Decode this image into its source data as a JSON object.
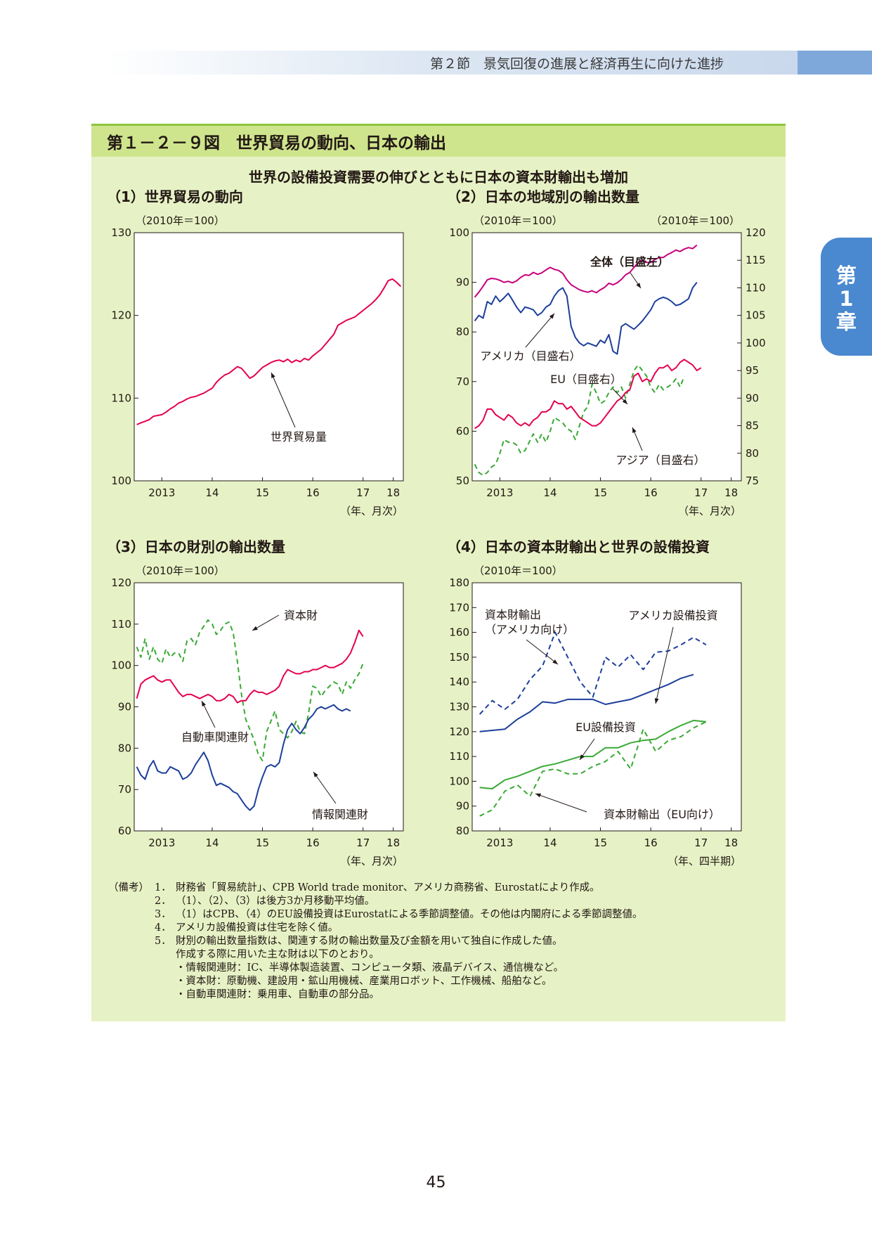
{
  "header": {
    "text": "第２節　景気回復の進展と経済再生に向けた進捗"
  },
  "chapter_tab": {
    "line1": "第",
    "line2": "1",
    "line3": "章"
  },
  "figure": {
    "title": "第１－２－９図　世界貿易の動向、日本の輸出",
    "subtitle": "世界の設備投資需要の伸びとともに日本の資本財輸出も増加"
  },
  "chart_data": [
    {
      "type": "line",
      "title": "（1）世界貿易の動向",
      "unit_left": "（2010年＝100）",
      "xlabel": "（年、月次）",
      "x_ticks": [
        "2013",
        "14",
        "15",
        "16",
        "17",
        "18"
      ],
      "x_tick_pos": [
        2013.5,
        2014.5,
        2015.5,
        2016.5,
        2017.5,
        2018.1
      ],
      "xlim": [
        2012.95,
        2018.3
      ],
      "ylim": [
        100,
        130
      ],
      "y_ticks": [
        100,
        110,
        120,
        130
      ],
      "series": [
        {
          "name": "世界貿易量",
          "color": "#e5004f",
          "style": "solid",
          "x_start": 2013.0,
          "x_step": 0.08333,
          "values": [
            106.8,
            107.0,
            107.2,
            107.4,
            107.8,
            107.9,
            108.0,
            108.3,
            108.7,
            109.0,
            109.4,
            109.6,
            109.9,
            110.1,
            110.2,
            110.4,
            110.6,
            110.9,
            111.2,
            111.9,
            112.4,
            112.8,
            113.0,
            113.4,
            113.8,
            113.6,
            113.0,
            112.4,
            112.7,
            113.2,
            113.7,
            114.0,
            114.3,
            114.5,
            114.6,
            114.4,
            114.7,
            114.3,
            114.6,
            114.4,
            114.8,
            114.6,
            115.1,
            115.5,
            115.9,
            116.5,
            117.1,
            117.7,
            118.8,
            119.1,
            119.4,
            119.6,
            119.8,
            120.2,
            120.6,
            121.0,
            121.4,
            121.9,
            122.5,
            123.3,
            124.2,
            124.4,
            124.0,
            123.5
          ]
        }
      ],
      "annotations": [
        {
          "text": "世界貿易量"
        }
      ]
    },
    {
      "type": "line",
      "title": "（2）日本の地域別の輸出数量",
      "unit_left": "（2010年＝100）",
      "unit_right": "（2010年＝100）",
      "xlabel": "（年、月次）",
      "x_ticks": [
        "2013",
        "14",
        "15",
        "16",
        "17",
        "18"
      ],
      "x_tick_pos": [
        2013.5,
        2014.5,
        2015.5,
        2016.5,
        2017.5,
        2018.1
      ],
      "xlim": [
        2012.95,
        2018.3
      ],
      "ylim_left": [
        50,
        100
      ],
      "y_ticks_left": [
        50,
        60,
        70,
        80,
        90,
        100
      ],
      "ylim_right": [
        75,
        120
      ],
      "y_ticks_right": [
        75,
        80,
        85,
        90,
        95,
        100,
        105,
        110,
        115,
        120
      ],
      "series": [
        {
          "name": "全体（目盛左）",
          "axis": "left",
          "color": "#c6007e",
          "style": "solid",
          "x_start": 2013.0,
          "x_step": 0.08333,
          "values": [
            87.0,
            88.0,
            89.2,
            90.5,
            90.8,
            90.7,
            90.4,
            90.0,
            90.2,
            89.9,
            90.3,
            91.0,
            91.5,
            91.4,
            92.0,
            91.6,
            91.9,
            92.5,
            93.0,
            92.6,
            92.4,
            91.8,
            90.5,
            89.5,
            89.0,
            88.5,
            88.2,
            88.0,
            88.3,
            87.9,
            88.5,
            89.0,
            89.8,
            89.5,
            89.9,
            90.6,
            91.5,
            92.0,
            93.0,
            94.0,
            94.5,
            94.0,
            94.0,
            94.6,
            95.0,
            95.0,
            95.6,
            96.0,
            96.5,
            96.2,
            96.7,
            97.0,
            96.8,
            97.5
          ]
        },
        {
          "name": "アメリカ（目盛右）",
          "axis": "right",
          "color": "#1d3f9b",
          "style": "solid",
          "x_start": 2013.0,
          "x_step": 0.08333,
          "values": [
            104.0,
            105.0,
            104.5,
            107.5,
            107.0,
            108.5,
            107.5,
            108.2,
            109.0,
            107.8,
            106.5,
            105.5,
            106.5,
            106.3,
            106.0,
            105.0,
            105.5,
            106.5,
            107.0,
            108.5,
            109.5,
            110.0,
            108.5,
            103.0,
            101.0,
            100.0,
            99.5,
            100.0,
            99.7,
            99.4,
            100.5,
            100.0,
            101.5,
            98.5,
            98.0,
            103.0,
            103.5,
            103.0,
            102.5,
            103.2,
            104.0,
            105.0,
            106.0,
            107.5,
            108.0,
            108.3,
            108.0,
            107.5,
            106.8,
            107.0,
            107.5,
            108.0,
            110.0,
            111.0
          ]
        },
        {
          "name": "EU（目盛右）",
          "axis": "right",
          "color": "#39a935",
          "style": "dashed",
          "x_start": 2013.0,
          "x_step": 0.08333,
          "values": [
            78.0,
            76.5,
            76.0,
            76.5,
            77.5,
            78.0,
            80.0,
            82.5,
            82.0,
            82.0,
            81.5,
            80.0,
            80.5,
            82.0,
            83.5,
            82.0,
            83.5,
            82.0,
            84.0,
            86.5,
            86.0,
            85.5,
            84.5,
            84.0,
            82.5,
            85.0,
            87.5,
            88.5,
            92.5,
            91.0,
            89.0,
            89.5,
            91.0,
            92.0,
            91.0,
            92.0,
            90.0,
            92.5,
            95.0,
            96.0,
            95.0,
            94.0,
            92.0,
            91.0,
            92.5,
            91.5,
            92.0,
            92.5,
            93.5,
            92.0,
            94.0
          ]
        },
        {
          "name": "アジア（目盛右）",
          "axis": "right",
          "color": "#e5004f",
          "style": "solid",
          "x_start": 2013.0,
          "x_step": 0.08333,
          "values": [
            84.5,
            85.0,
            86.0,
            88.0,
            88.0,
            87.0,
            86.5,
            86.0,
            87.0,
            86.5,
            85.5,
            85.0,
            85.5,
            85.0,
            86.0,
            86.5,
            87.5,
            87.5,
            88.0,
            89.5,
            89.0,
            89.0,
            88.0,
            88.5,
            87.5,
            86.5,
            86.0,
            85.5,
            85.0,
            85.0,
            85.5,
            86.5,
            87.5,
            88.5,
            89.5,
            90.0,
            91.0,
            91.5,
            94.0,
            94.5,
            93.0,
            93.5,
            93.0,
            94.5,
            95.5,
            95.5,
            96.0,
            95.0,
            95.5,
            96.5,
            97.0,
            96.5,
            96.0,
            95.0,
            95.5
          ]
        }
      ],
      "annotations": [
        {
          "text": "全体（目盛左）"
        },
        {
          "text": "アメリカ（目盛右）"
        },
        {
          "text": "EU（目盛右）"
        },
        {
          "text": "アジア（目盛右）"
        }
      ]
    },
    {
      "type": "line",
      "title": "（3）日本の財別の輸出数量",
      "unit_left": "（2010年＝100）",
      "xlabel": "（年、月次）",
      "x_ticks": [
        "2013",
        "14",
        "15",
        "16",
        "17",
        "18"
      ],
      "x_tick_pos": [
        2013.5,
        2014.5,
        2015.5,
        2016.5,
        2017.5,
        2018.1
      ],
      "xlim": [
        2012.95,
        2018.3
      ],
      "ylim": [
        60,
        120
      ],
      "y_ticks": [
        60,
        70,
        80,
        90,
        100,
        110,
        120
      ],
      "series": [
        {
          "name": "資本財",
          "color": "#39a935",
          "style": "dashed",
          "x_start": 2013.0,
          "x_step": 0.08333,
          "values": [
            104.5,
            102.0,
            106.5,
            101.5,
            104.5,
            101.5,
            100.5,
            104.0,
            102.0,
            103.0,
            103.0,
            101.0,
            106.0,
            106.5,
            105.0,
            108.0,
            109.5,
            111.0,
            110.0,
            107.5,
            108.5,
            110.0,
            110.5,
            108.0,
            101.0,
            93.0,
            87.0,
            84.5,
            82.0,
            78.5,
            77.0,
            84.0,
            86.5,
            89.0,
            84.5,
            83.5,
            82.5,
            84.0,
            86.5,
            84.0,
            83.5,
            88.5,
            95.0,
            94.5,
            92.5,
            94.0,
            95.0,
            96.0,
            95.5,
            93.0,
            96.0,
            94.5,
            96.5,
            98.0,
            100.5
          ]
        },
        {
          "name": "自動車関連財",
          "color": "#e5004f",
          "style": "solid",
          "x_start": 2013.0,
          "x_step": 0.08333,
          "values": [
            92.0,
            95.5,
            96.5,
            97.0,
            97.5,
            96.5,
            96.0,
            96.5,
            96.5,
            95.0,
            93.5,
            92.5,
            93.0,
            93.0,
            92.5,
            92.0,
            92.5,
            93.0,
            92.5,
            91.5,
            91.5,
            92.0,
            93.0,
            92.5,
            91.0,
            91.5,
            91.5,
            93.0,
            94.0,
            93.5,
            93.5,
            93.0,
            93.5,
            94.0,
            95.0,
            97.5,
            99.0,
            98.5,
            98.0,
            98.0,
            98.5,
            98.5,
            99.0,
            99.0,
            99.5,
            100.0,
            99.5,
            99.5,
            100.0,
            100.5,
            101.5,
            103.0,
            105.5,
            108.5,
            107.0
          ]
        },
        {
          "name": "情報関連財",
          "color": "#1d3f9b",
          "style": "solid",
          "x_start": 2013.0,
          "x_step": 0.08333,
          "values": [
            75.5,
            73.5,
            72.5,
            75.5,
            77.0,
            74.5,
            74.0,
            74.0,
            75.5,
            75.0,
            74.5,
            72.5,
            73.0,
            74.0,
            76.0,
            77.5,
            79.0,
            77.0,
            73.5,
            71.0,
            71.5,
            71.0,
            70.5,
            69.5,
            69.0,
            67.5,
            66.0,
            65.0,
            66.0,
            70.0,
            73.0,
            75.5,
            76.0,
            75.5,
            76.5,
            81.0,
            84.5,
            86.0,
            84.5,
            83.5,
            85.0,
            87.0,
            88.0,
            89.5,
            90.0,
            89.5,
            90.0,
            90.5,
            89.5,
            89.0,
            89.5,
            89.0
          ]
        }
      ],
      "annotations": [
        {
          "text": "資本財"
        },
        {
          "text": "自動車関連財"
        },
        {
          "text": "情報関連財"
        }
      ]
    },
    {
      "type": "line",
      "title": "（4）日本の資本財輸出と世界の設備投資",
      "unit_left": "（2010年＝100）",
      "xlabel": "（年、四半期）",
      "x_ticks": [
        "2013",
        "14",
        "15",
        "16",
        "17",
        "18"
      ],
      "x_tick_pos": [
        2013.5,
        2014.5,
        2015.5,
        2016.5,
        2017.5,
        2018.1
      ],
      "xlim": [
        2012.95,
        2018.3
      ],
      "ylim": [
        80,
        180
      ],
      "y_ticks": [
        80,
        90,
        100,
        110,
        120,
        130,
        140,
        150,
        160,
        170,
        180
      ],
      "series": [
        {
          "name": "資本財輸出（アメリカ向け）",
          "color": "#1d3f9b",
          "style": "dashed",
          "x_start": 2013.1,
          "x_step": 0.25,
          "values": [
            127.0,
            132.5,
            129.0,
            133.0,
            141.0,
            146.5,
            160.0,
            150.0,
            140.0,
            134.0,
            150.0,
            146.0,
            151.0,
            145.0,
            152.0,
            152.5,
            155.0,
            158.0,
            155.0
          ]
        },
        {
          "name": "アメリカ設備投資",
          "color": "#1d3f9b",
          "style": "solid",
          "x_start": 2013.1,
          "x_step": 0.25,
          "values": [
            120.0,
            120.5,
            121.0,
            125.0,
            128.0,
            132.0,
            131.5,
            133.0,
            133.0,
            133.0,
            131.0,
            132.0,
            133.0,
            135.0,
            137.0,
            139.0,
            141.5,
            143.0
          ]
        },
        {
          "name": "EU設備投資",
          "color": "#39a935",
          "style": "solid",
          "x_start": 2013.1,
          "x_step": 0.25,
          "values": [
            97.5,
            97.0,
            100.5,
            102.0,
            104.0,
            106.0,
            107.0,
            108.5,
            110.0,
            110.0,
            113.5,
            113.5,
            115.5,
            116.5,
            117.0,
            120.0,
            122.5,
            124.5,
            124.0
          ]
        },
        {
          "name": "資本財輸出（EU向け）",
          "color": "#39a935",
          "style": "dashed",
          "x_start": 2013.1,
          "x_step": 0.25,
          "values": [
            86.0,
            88.5,
            96.0,
            98.5,
            94.0,
            104.0,
            105.0,
            103.0,
            103.0,
            106.0,
            108.0,
            112.0,
            105.0,
            121.0,
            112.0,
            116.5,
            118.0,
            121.5,
            124.0
          ]
        }
      ],
      "annotations": [
        {
          "text": "資本財輸出"
        },
        {
          "text": "（アメリカ向け）"
        },
        {
          "text": "アメリカ設備投資"
        },
        {
          "text": "EU設備投資"
        },
        {
          "text": "資本財輸出（EU向け）"
        }
      ]
    }
  ],
  "notes": {
    "label": "（備考）",
    "items": [
      {
        "num": "1．",
        "text": "財務省「貿易統計」、CPB World trade monitor、アメリカ商務省、Eurostatにより作成。"
      },
      {
        "num": "2．",
        "text": "（1）、（2）、（3）は後方3か月移動平均値。"
      },
      {
        "num": "3．",
        "text": "（1）はCPB、（4）のEU設備投資はEurostatによる季節調整値。その他は内閣府による季節調整値。"
      },
      {
        "num": "4．",
        "text": "アメリカ設備投資は住宅を除く値。"
      },
      {
        "num": "5．",
        "text": "財別の輸出数量指数は、関連する財の輸出数量及び金額を用いて独自に作成した値。"
      },
      {
        "num": "",
        "text": "作成する際に用いた主な財は以下のとおり。"
      },
      {
        "num": "",
        "text": "・情報関連財：IC、半導体製造装置、コンピュータ類、液晶デバイス、通信機など。"
      },
      {
        "num": "",
        "text": "・資本財：原動機、建設用・鉱山用機械、産業用ロボット、工作機械、船舶など。"
      },
      {
        "num": "",
        "text": "・自動車関連財：乗用車、自動車の部分品。"
      }
    ]
  },
  "page_number": "45"
}
